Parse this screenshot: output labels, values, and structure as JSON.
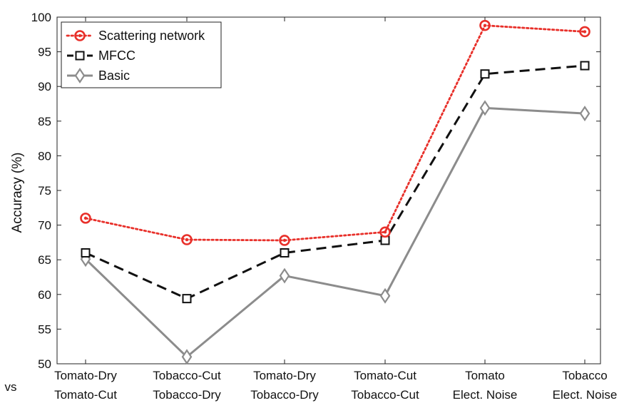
{
  "chart_data": {
    "type": "line",
    "categories": [
      [
        "Tomato-Dry",
        "Tomato-Cut"
      ],
      [
        "Tobacco-Cut",
        "Tobacco-Dry"
      ],
      [
        "Tomato-Dry",
        "Tobacco-Dry"
      ],
      [
        "Tomato-Cut",
        "Tobacco-Cut"
      ],
      [
        "Tomato",
        "Elect. Noise"
      ],
      [
        "Tobacco",
        "Elect. Noise"
      ]
    ],
    "vs_label": "vs",
    "series": [
      {
        "name": "Scattering network",
        "values": [
          71.0,
          67.9,
          67.8,
          69.0,
          98.8,
          97.9
        ],
        "color": "#e8302a",
        "marker": "circle",
        "dash": "dotted"
      },
      {
        "name": "MFCC",
        "values": [
          66.0,
          59.4,
          66.0,
          67.8,
          91.8,
          93.0
        ],
        "color": "#111111",
        "marker": "square",
        "dash": "dashed"
      },
      {
        "name": "Basic",
        "values": [
          65.1,
          51.0,
          62.7,
          59.8,
          86.9,
          86.1
        ],
        "color": "#8c8c8c",
        "marker": "diamond",
        "dash": "solid"
      }
    ],
    "title": "",
    "xlabel": "",
    "ylabel": "Accuracy (%)",
    "ylim": [
      50,
      100
    ],
    "yticks": [
      50,
      55,
      60,
      65,
      70,
      75,
      80,
      85,
      90,
      95,
      100
    ],
    "grid": false,
    "legend_position": "top-left"
  }
}
